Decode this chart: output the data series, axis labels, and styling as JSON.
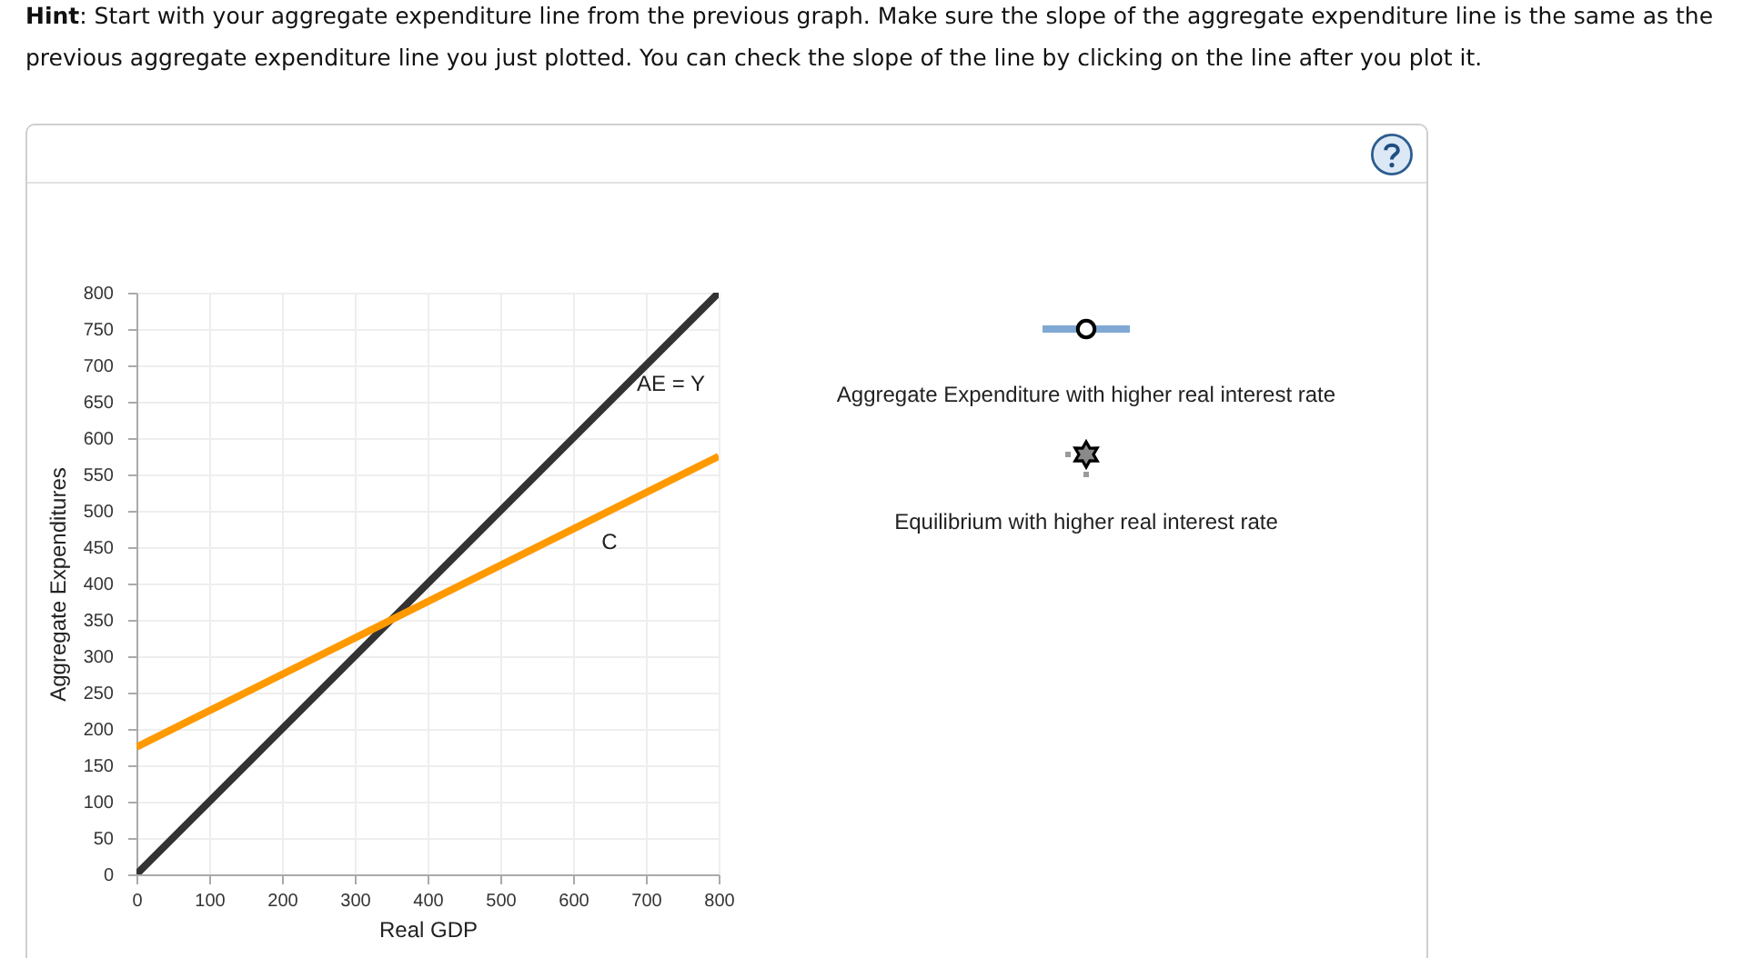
{
  "chart_data": {
    "type": "line",
    "xlabel": "Real GDP",
    "ylabel": "Aggregate Expenditures",
    "x": [
      0,
      800
    ],
    "series": [
      {
        "name": "AE = Y",
        "color": "#333333",
        "values": [
          0,
          800
        ]
      },
      {
        "name": "C",
        "color": "#ff9900",
        "values": [
          175,
          575
        ]
      }
    ],
    "xlim": [
      0,
      800
    ],
    "ylim": [
      0,
      800
    ],
    "xticks": [
      0,
      100,
      200,
      300,
      400,
      500,
      600,
      700,
      800
    ],
    "yticks": [
      0,
      50,
      100,
      150,
      200,
      250,
      300,
      350,
      400,
      450,
      500,
      550,
      600,
      650,
      700,
      750,
      800
    ],
    "grid": true,
    "annotations": [
      "Hint: Start with your aggregate expenditure line from the previous graph. Make sure the slope of the aggregate expenditure line is the same as the previous aggregate expenditure line you just plotted. You can check the slope of the line by clicking on the line after you plot it.",
      "Aggregate Expenditure with higher real interest rate",
      "Equilibrium with higher real interest rate"
    ]
  }
}
